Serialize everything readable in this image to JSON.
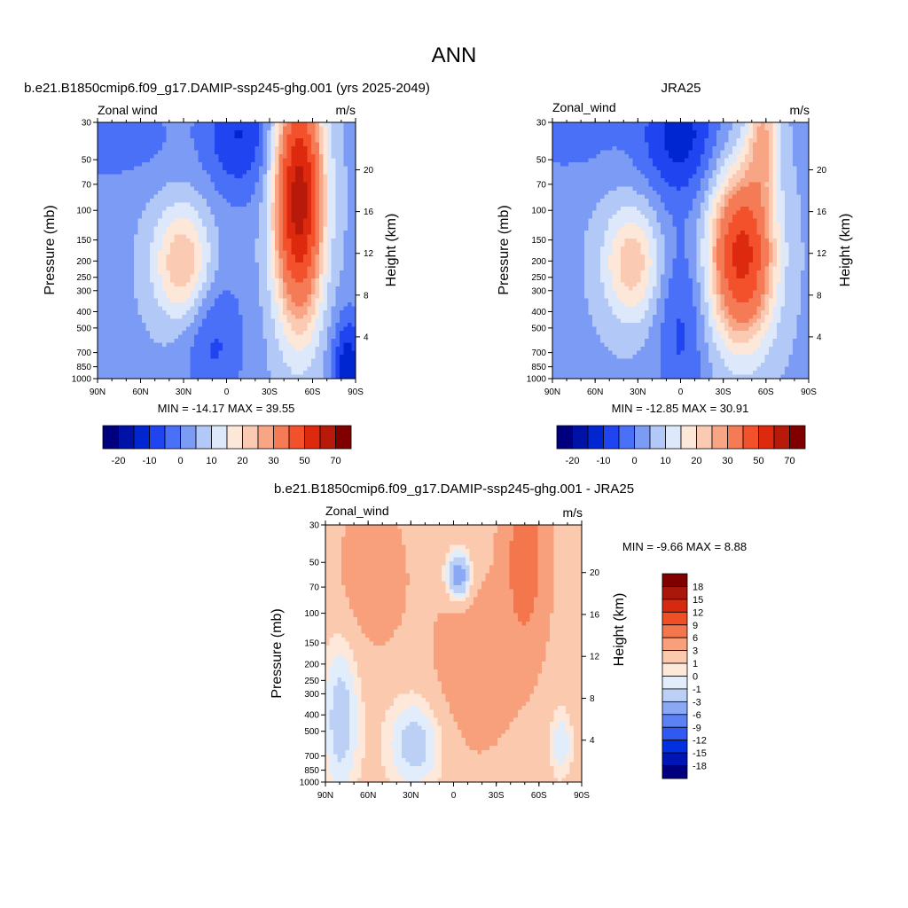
{
  "title": "ANN",
  "colors": {
    "abs": [
      "#00007f",
      "#0011a8",
      "#0026d2",
      "#1f44f0",
      "#4a70f7",
      "#7c9bf5",
      "#b2c8f7",
      "#dde9fb",
      "#fde7d8",
      "#fbcab2",
      "#f8a585",
      "#f57b56",
      "#f2512b",
      "#dd2a0f",
      "#b7190b",
      "#800000"
    ],
    "diff": [
      "#00007f",
      "#0015b4",
      "#0030e0",
      "#3058f2",
      "#5a82f5",
      "#8aa8f4",
      "#bcd0f6",
      "#e2edfb",
      "#fde8da",
      "#fbc9ad",
      "#f8a07c",
      "#f4764c",
      "#f04e25",
      "#d52a0f",
      "#a9170a",
      "#800000"
    ]
  },
  "chart_data": [
    {
      "type": "heatmap",
      "title": "b.e21.B1850cmip6.f09_g17.DAMIP-ssp245-ghg.001 (yrs 2025-2049)",
      "left_label": "Zonal wind",
      "right_label": "m/s",
      "xlabel": "",
      "ylabel": "Pressure (mb)",
      "ylabel_right": "Height (km)",
      "x_ticks": [
        "90N",
        "60N",
        "30N",
        "0",
        "30S",
        "60S",
        "90S"
      ],
      "y_ticks": [
        "30",
        "50",
        "70",
        "100",
        "150",
        "200",
        "250",
        "300",
        "400",
        "500",
        "700",
        "850",
        "1000"
      ],
      "height_ticks": [
        "20",
        "16",
        "12",
        "8",
        "4"
      ],
      "stats": "MIN = -14.17  MAX =  39.55",
      "colorbar_labels": [
        "-20",
        "-10",
        "0",
        "10",
        "20",
        "30",
        "50",
        "70"
      ]
    },
    {
      "type": "heatmap",
      "title": "JRA25",
      "left_label": "Zonal_wind",
      "right_label": "m/s",
      "xlabel": "",
      "ylabel": "Pressure (mb)",
      "ylabel_right": "Height (km)",
      "x_ticks": [
        "90N",
        "60N",
        "30N",
        "0",
        "30S",
        "60S",
        "90S"
      ],
      "y_ticks": [
        "30",
        "50",
        "70",
        "100",
        "150",
        "200",
        "250",
        "300",
        "400",
        "500",
        "700",
        "850",
        "1000"
      ],
      "height_ticks": [
        "20",
        "16",
        "12",
        "8",
        "4"
      ],
      "stats": "MIN = -12.85  MAX =  30.91",
      "colorbar_labels": [
        "-20",
        "-10",
        "0",
        "10",
        "20",
        "30",
        "50",
        "70"
      ]
    },
    {
      "type": "heatmap",
      "title": "b.e21.B1850cmip6.f09_g17.DAMIP-ssp245-ghg.001 - JRA25",
      "left_label": "Zonal_wind",
      "right_label": "m/s",
      "xlabel": "",
      "ylabel": "Pressure (mb)",
      "ylabel_right": "Height (km)",
      "x_ticks": [
        "90N",
        "60N",
        "30N",
        "0",
        "30S",
        "60S",
        "90S"
      ],
      "y_ticks": [
        "30",
        "50",
        "70",
        "100",
        "150",
        "200",
        "250",
        "300",
        "400",
        "500",
        "700",
        "850",
        "1000"
      ],
      "height_ticks": [
        "20",
        "16",
        "12",
        "8",
        "4"
      ],
      "stats": "MIN =  -9.66  MAX =    8.88",
      "colorbar_labels": [
        "18",
        "15",
        "12",
        "9",
        "6",
        "3",
        "1",
        "0",
        "-1",
        "-3",
        "-6",
        "-9",
        "-12",
        "-15",
        "-18"
      ]
    }
  ]
}
